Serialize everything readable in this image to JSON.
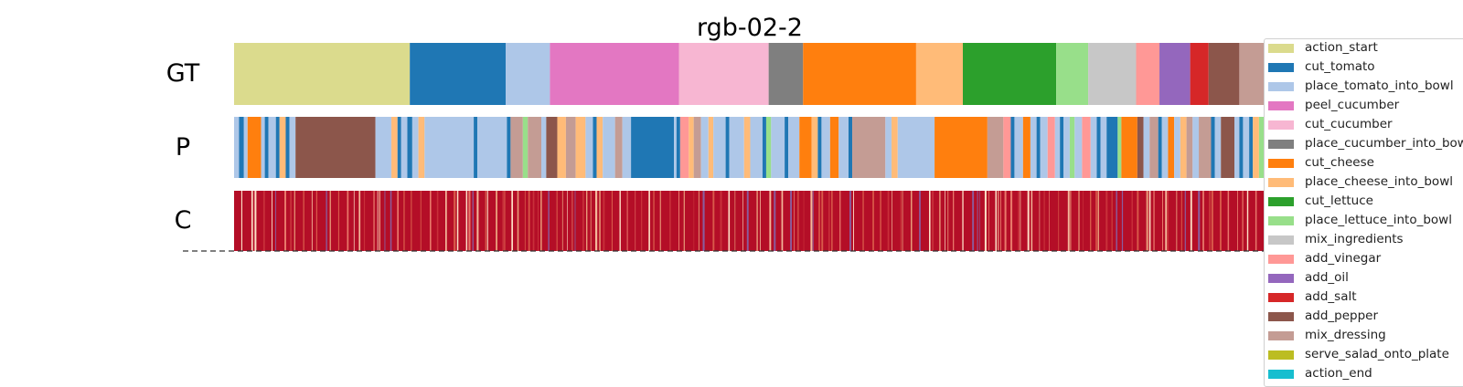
{
  "chart_data": {
    "type": "segmentation-timeline",
    "title": "rgb-02-2",
    "rows": [
      "GT",
      "P",
      "C"
    ],
    "legend": [
      {
        "label": "action_start",
        "color": "#dbdb8d"
      },
      {
        "label": "cut_tomato",
        "color": "#1f77b4"
      },
      {
        "label": "place_tomato_into_bowl",
        "color": "#aec7e8"
      },
      {
        "label": "peel_cucumber",
        "color": "#e377c2"
      },
      {
        "label": "cut_cucumber",
        "color": "#f7b6d2"
      },
      {
        "label": "place_cucumber_into_bowl",
        "color": "#7f7f7f"
      },
      {
        "label": "cut_cheese",
        "color": "#ff7f0e"
      },
      {
        "label": "place_cheese_into_bowl",
        "color": "#ffbb78"
      },
      {
        "label": "cut_lettuce",
        "color": "#2ca02c"
      },
      {
        "label": "place_lettuce_into_bowl",
        "color": "#98df8a"
      },
      {
        "label": "mix_ingredients",
        "color": "#c7c7c7"
      },
      {
        "label": "add_vinegar",
        "color": "#ff9896"
      },
      {
        "label": "add_oil",
        "color": "#9467bd"
      },
      {
        "label": "add_salt",
        "color": "#d62728"
      },
      {
        "label": "add_pepper",
        "color": "#8c564b"
      },
      {
        "label": "mix_dressing",
        "color": "#c49c94"
      },
      {
        "label": "serve_salad_onto_plate",
        "color": "#bcbd22"
      },
      {
        "label": "action_end",
        "color": "#17becf"
      }
    ],
    "gt_segments": [
      {
        "action": "action_start",
        "start": 0.0,
        "end": 0.143
      },
      {
        "action": "cut_tomato",
        "start": 0.143,
        "end": 0.221
      },
      {
        "action": "place_tomato_into_bowl",
        "start": 0.221,
        "end": 0.257
      },
      {
        "action": "peel_cucumber",
        "start": 0.257,
        "end": 0.362
      },
      {
        "action": "cut_cucumber",
        "start": 0.362,
        "end": 0.435
      },
      {
        "action": "place_cucumber_into_bowl",
        "start": 0.435,
        "end": 0.463
      },
      {
        "action": "cut_cheese",
        "start": 0.463,
        "end": 0.555
      },
      {
        "action": "place_cheese_into_bowl",
        "start": 0.555,
        "end": 0.593
      },
      {
        "action": "cut_lettuce",
        "start": 0.593,
        "end": 0.669
      },
      {
        "action": "place_lettuce_into_bowl",
        "start": 0.669,
        "end": 0.695
      },
      {
        "action": "mix_ingredients",
        "start": 0.695,
        "end": 0.734
      },
      {
        "action": "add_vinegar",
        "start": 0.734,
        "end": 0.753
      },
      {
        "action": "add_oil",
        "start": 0.753,
        "end": 0.778
      },
      {
        "action": "add_salt",
        "start": 0.778,
        "end": 0.793
      },
      {
        "action": "add_pepper",
        "start": 0.793,
        "end": 0.818
      },
      {
        "action": "mix_dressing",
        "start": 0.818,
        "end": 0.858
      },
      {
        "action": "serve_salad_onto_plate",
        "start": 0.858,
        "end": 0.899
      },
      {
        "action": "action_end",
        "start": 0.899,
        "end": 1.0
      }
    ],
    "p_segments": [
      {
        "action": "place_tomato_into_bowl",
        "start": 0.0,
        "end": 0.004
      },
      {
        "action": "cut_tomato",
        "start": 0.004,
        "end": 0.008
      },
      {
        "action": "place_tomato_into_bowl",
        "start": 0.008,
        "end": 0.011
      },
      {
        "action": "cut_cheese",
        "start": 0.011,
        "end": 0.022
      },
      {
        "action": "place_tomato_into_bowl",
        "start": 0.022,
        "end": 0.025
      },
      {
        "action": "cut_tomato",
        "start": 0.025,
        "end": 0.028
      },
      {
        "action": "place_tomato_into_bowl",
        "start": 0.028,
        "end": 0.034
      },
      {
        "action": "cut_tomato",
        "start": 0.034,
        "end": 0.037
      },
      {
        "action": "place_cheese_into_bowl",
        "start": 0.037,
        "end": 0.042
      },
      {
        "action": "cut_tomato",
        "start": 0.042,
        "end": 0.045
      },
      {
        "action": "place_tomato_into_bowl",
        "start": 0.045,
        "end": 0.05
      },
      {
        "action": "add_pepper",
        "start": 0.05,
        "end": 0.115
      },
      {
        "action": "place_tomato_into_bowl",
        "start": 0.115,
        "end": 0.128
      },
      {
        "action": "place_cheese_into_bowl",
        "start": 0.128,
        "end": 0.133
      },
      {
        "action": "cut_tomato",
        "start": 0.133,
        "end": 0.136
      },
      {
        "action": "place_tomato_into_bowl",
        "start": 0.136,
        "end": 0.141
      },
      {
        "action": "cut_tomato",
        "start": 0.141,
        "end": 0.145
      },
      {
        "action": "place_tomato_into_bowl",
        "start": 0.145,
        "end": 0.15
      },
      {
        "action": "place_cheese_into_bowl",
        "start": 0.15,
        "end": 0.155
      },
      {
        "action": "place_tomato_into_bowl",
        "start": 0.155,
        "end": 0.195
      },
      {
        "action": "cut_tomato",
        "start": 0.195,
        "end": 0.198
      },
      {
        "action": "place_tomato_into_bowl",
        "start": 0.198,
        "end": 0.222
      },
      {
        "action": "cut_tomato",
        "start": 0.222,
        "end": 0.225
      },
      {
        "action": "mix_dressing",
        "start": 0.225,
        "end": 0.235
      },
      {
        "action": "place_lettuce_into_bowl",
        "start": 0.235,
        "end": 0.239
      },
      {
        "action": "mix_dressing",
        "start": 0.239,
        "end": 0.25
      },
      {
        "action": "place_tomato_into_bowl",
        "start": 0.25,
        "end": 0.254
      },
      {
        "action": "add_pepper",
        "start": 0.254,
        "end": 0.263
      },
      {
        "action": "place_cheese_into_bowl",
        "start": 0.263,
        "end": 0.27
      },
      {
        "action": "mix_dressing",
        "start": 0.27,
        "end": 0.278
      },
      {
        "action": "place_cheese_into_bowl",
        "start": 0.278,
        "end": 0.286
      },
      {
        "action": "place_tomato_into_bowl",
        "start": 0.286,
        "end": 0.292
      },
      {
        "action": "cut_tomato",
        "start": 0.292,
        "end": 0.295
      },
      {
        "action": "place_cheese_into_bowl",
        "start": 0.295,
        "end": 0.3
      },
      {
        "action": "place_tomato_into_bowl",
        "start": 0.3,
        "end": 0.31
      },
      {
        "action": "mix_dressing",
        "start": 0.31,
        "end": 0.316
      },
      {
        "action": "place_tomato_into_bowl",
        "start": 0.316,
        "end": 0.323
      },
      {
        "action": "cut_tomato",
        "start": 0.323,
        "end": 0.358
      },
      {
        "action": "place_tomato_into_bowl",
        "start": 0.358,
        "end": 0.36
      },
      {
        "action": "cut_tomato",
        "start": 0.36,
        "end": 0.363
      },
      {
        "action": "add_vinegar",
        "start": 0.363,
        "end": 0.37
      },
      {
        "action": "place_cheese_into_bowl",
        "start": 0.37,
        "end": 0.374
      },
      {
        "action": "mix_dressing",
        "start": 0.374,
        "end": 0.38
      },
      {
        "action": "place_tomato_into_bowl",
        "start": 0.38,
        "end": 0.386
      },
      {
        "action": "place_cheese_into_bowl",
        "start": 0.386,
        "end": 0.39
      },
      {
        "action": "place_tomato_into_bowl",
        "start": 0.39,
        "end": 0.4
      },
      {
        "action": "cut_tomato",
        "start": 0.4,
        "end": 0.403
      },
      {
        "action": "place_tomato_into_bowl",
        "start": 0.403,
        "end": 0.415
      },
      {
        "action": "place_cheese_into_bowl",
        "start": 0.415,
        "end": 0.42
      },
      {
        "action": "place_tomato_into_bowl",
        "start": 0.42,
        "end": 0.43
      },
      {
        "action": "cut_tomato",
        "start": 0.43,
        "end": 0.433
      },
      {
        "action": "place_lettuce_into_bowl",
        "start": 0.433,
        "end": 0.437
      },
      {
        "action": "place_tomato_into_bowl",
        "start": 0.437,
        "end": 0.448
      },
      {
        "action": "cut_tomato",
        "start": 0.448,
        "end": 0.451
      },
      {
        "action": "place_tomato_into_bowl",
        "start": 0.451,
        "end": 0.46
      },
      {
        "action": "cut_cheese",
        "start": 0.46,
        "end": 0.47
      },
      {
        "action": "place_cheese_into_bowl",
        "start": 0.47,
        "end": 0.475
      },
      {
        "action": "cut_tomato",
        "start": 0.475,
        "end": 0.478
      },
      {
        "action": "place_tomato_into_bowl",
        "start": 0.478,
        "end": 0.485
      },
      {
        "action": "cut_cheese",
        "start": 0.485,
        "end": 0.492
      },
      {
        "action": "place_tomato_into_bowl",
        "start": 0.492,
        "end": 0.5
      },
      {
        "action": "cut_tomato",
        "start": 0.5,
        "end": 0.503
      },
      {
        "action": "mix_dressing",
        "start": 0.503,
        "end": 0.53
      },
      {
        "action": "place_tomato_into_bowl",
        "start": 0.53,
        "end": 0.535
      },
      {
        "action": "place_cheese_into_bowl",
        "start": 0.535,
        "end": 0.54
      },
      {
        "action": "place_tomato_into_bowl",
        "start": 0.54,
        "end": 0.57
      },
      {
        "action": "cut_cheese",
        "start": 0.57,
        "end": 0.613
      },
      {
        "action": "mix_dressing",
        "start": 0.613,
        "end": 0.626
      },
      {
        "action": "add_vinegar",
        "start": 0.626,
        "end": 0.632
      },
      {
        "action": "cut_tomato",
        "start": 0.632,
        "end": 0.635
      },
      {
        "action": "place_tomato_into_bowl",
        "start": 0.635,
        "end": 0.642
      },
      {
        "action": "cut_cheese",
        "start": 0.642,
        "end": 0.648
      },
      {
        "action": "place_tomato_into_bowl",
        "start": 0.648,
        "end": 0.653
      },
      {
        "action": "cut_tomato",
        "start": 0.653,
        "end": 0.656
      },
      {
        "action": "place_tomato_into_bowl",
        "start": 0.656,
        "end": 0.662
      },
      {
        "action": "add_vinegar",
        "start": 0.662,
        "end": 0.668
      },
      {
        "action": "place_tomato_into_bowl",
        "start": 0.668,
        "end": 0.672
      },
      {
        "action": "cut_tomato",
        "start": 0.672,
        "end": 0.675
      },
      {
        "action": "place_tomato_into_bowl",
        "start": 0.675,
        "end": 0.68
      },
      {
        "action": "place_lettuce_into_bowl",
        "start": 0.68,
        "end": 0.684
      },
      {
        "action": "place_tomato_into_bowl",
        "start": 0.684,
        "end": 0.69
      },
      {
        "action": "add_vinegar",
        "start": 0.69,
        "end": 0.697
      },
      {
        "action": "place_tomato_into_bowl",
        "start": 0.697,
        "end": 0.702
      },
      {
        "action": "cut_tomato",
        "start": 0.702,
        "end": 0.705
      },
      {
        "action": "place_tomato_into_bowl",
        "start": 0.705,
        "end": 0.71
      },
      {
        "action": "cut_tomato",
        "start": 0.71,
        "end": 0.719
      },
      {
        "action": "place_lettuce_into_bowl",
        "start": 0.719,
        "end": 0.722
      },
      {
        "action": "cut_cheese",
        "start": 0.722,
        "end": 0.735
      },
      {
        "action": "add_pepper",
        "start": 0.735,
        "end": 0.74
      },
      {
        "action": "place_tomato_into_bowl",
        "start": 0.74,
        "end": 0.745
      },
      {
        "action": "mix_dressing",
        "start": 0.745,
        "end": 0.752
      },
      {
        "action": "cut_tomato",
        "start": 0.752,
        "end": 0.755
      },
      {
        "action": "place_tomato_into_bowl",
        "start": 0.755,
        "end": 0.76
      },
      {
        "action": "cut_cheese",
        "start": 0.76,
        "end": 0.765
      },
      {
        "action": "place_tomato_into_bowl",
        "start": 0.765,
        "end": 0.77
      },
      {
        "action": "place_cheese_into_bowl",
        "start": 0.77,
        "end": 0.775
      },
      {
        "action": "mix_dressing",
        "start": 0.775,
        "end": 0.78
      },
      {
        "action": "place_tomato_into_bowl",
        "start": 0.78,
        "end": 0.785
      },
      {
        "action": "mix_dressing",
        "start": 0.785,
        "end": 0.795
      },
      {
        "action": "cut_tomato",
        "start": 0.795,
        "end": 0.798
      },
      {
        "action": "place_tomato_into_bowl",
        "start": 0.798,
        "end": 0.803
      },
      {
        "action": "add_pepper",
        "start": 0.803,
        "end": 0.814
      },
      {
        "action": "place_tomato_into_bowl",
        "start": 0.814,
        "end": 0.818
      },
      {
        "action": "cut_tomato",
        "start": 0.818,
        "end": 0.821
      },
      {
        "action": "place_tomato_into_bowl",
        "start": 0.821,
        "end": 0.826
      },
      {
        "action": "cut_tomato",
        "start": 0.826,
        "end": 0.829
      },
      {
        "action": "place_cheese_into_bowl",
        "start": 0.829,
        "end": 0.834
      },
      {
        "action": "place_lettuce_into_bowl",
        "start": 0.834,
        "end": 0.847
      },
      {
        "action": "place_tomato_into_bowl",
        "start": 0.847,
        "end": 0.85
      },
      {
        "action": "add_pepper",
        "start": 0.85,
        "end": 0.862
      },
      {
        "action": "place_tomato_into_bowl",
        "start": 0.862,
        "end": 0.868
      },
      {
        "action": "cut_tomato",
        "start": 0.868,
        "end": 0.871
      },
      {
        "action": "place_cheese_into_bowl",
        "start": 0.871,
        "end": 0.876
      },
      {
        "action": "mix_dressing",
        "start": 0.876,
        "end": 0.882
      },
      {
        "action": "place_tomato_into_bowl",
        "start": 0.882,
        "end": 0.887
      },
      {
        "action": "add_vinegar",
        "start": 0.887,
        "end": 0.893
      },
      {
        "action": "place_tomato_into_bowl",
        "start": 0.893,
        "end": 0.898
      },
      {
        "action": "add_vinegar",
        "start": 0.898,
        "end": 0.91
      },
      {
        "action": "mix_dressing",
        "start": 0.91,
        "end": 0.93
      },
      {
        "action": "place_tomato_into_bowl",
        "start": 0.93,
        "end": 1.0
      }
    ]
  }
}
